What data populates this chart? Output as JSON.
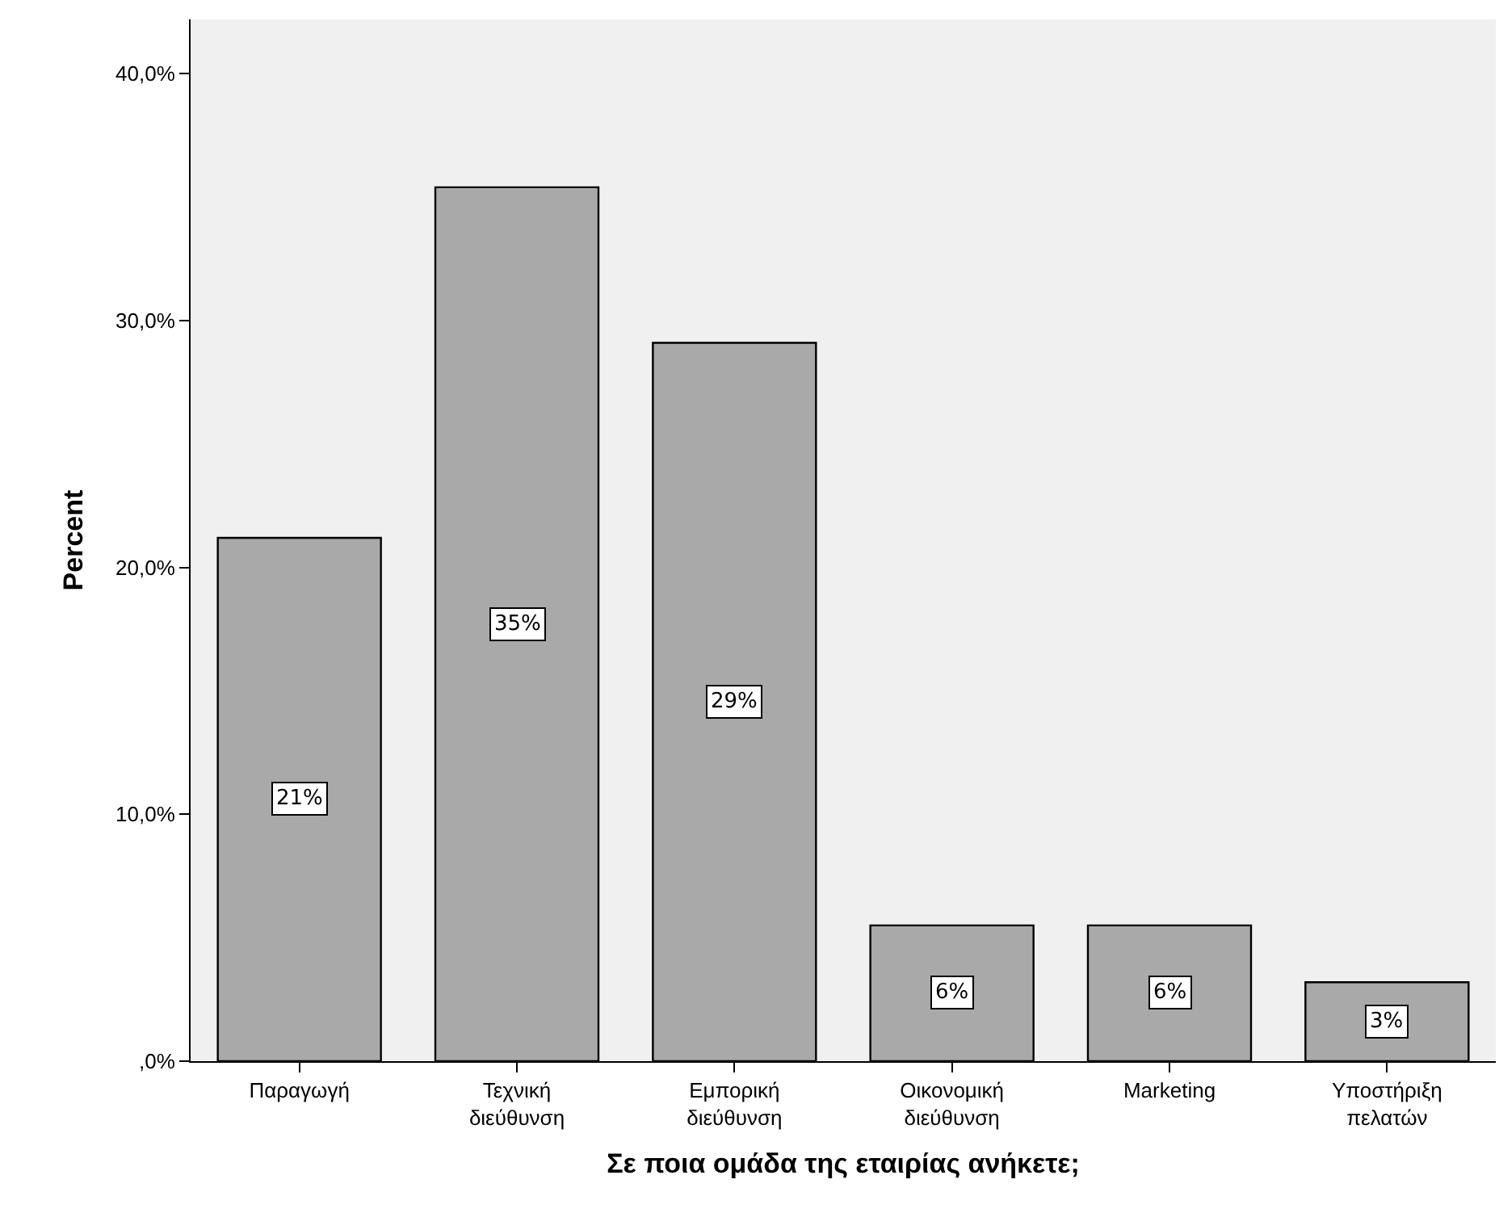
{
  "chart_data": {
    "type": "bar",
    "xlabel": "Σε ποια ομάδα της εταιρίας ανήκετε;",
    "ylabel": "Percent",
    "categories": [
      "Παραγωγή",
      "Τεχνική\nδιεύθυνση",
      "Εμπορική\nδιεύθυνση",
      "Οικονομική\nδιεύθυνση",
      "Marketing",
      "Υποστήριξη\nπελατών"
    ],
    "values": [
      21.2,
      35.4,
      29.1,
      5.5,
      5.5,
      3.2
    ],
    "value_labels": [
      "21%",
      "35%",
      "29%",
      "6%",
      "6%",
      "3%"
    ],
    "color": "#a9a9a9",
    "ylim": [
      0,
      42.2
    ],
    "yticks": [
      {
        "value": 0,
        "label": ",0%"
      },
      {
        "value": 10,
        "label": "10,0%"
      },
      {
        "value": 20,
        "label": "20,0%"
      },
      {
        "value": 30,
        "label": "30,0%"
      },
      {
        "value": 40,
        "label": "40,0%"
      }
    ],
    "grid": false,
    "legend": false
  }
}
